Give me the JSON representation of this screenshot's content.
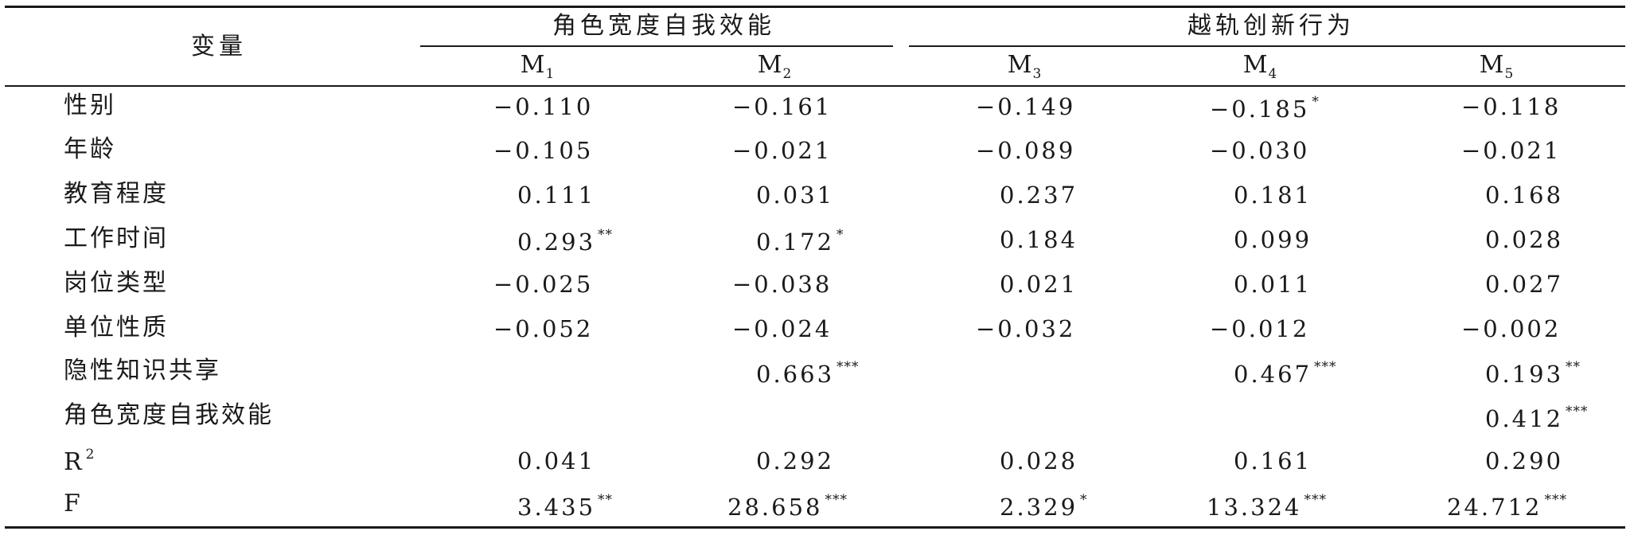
{
  "header": {
    "variable_label": "变量",
    "group_1": "角色宽度自我效能",
    "group_2": "越轨创新行为",
    "models": [
      {
        "base": "M",
        "sub": "1"
      },
      {
        "base": "M",
        "sub": "2"
      },
      {
        "base": "M",
        "sub": "3"
      },
      {
        "base": "M",
        "sub": "4"
      },
      {
        "base": "M",
        "sub": "5"
      }
    ]
  },
  "rows": [
    {
      "label": "性别",
      "label_sup": "",
      "cells": [
        {
          "value": "−0.110",
          "sig": ""
        },
        {
          "value": "−0.161",
          "sig": ""
        },
        {
          "value": "−0.149",
          "sig": ""
        },
        {
          "value": "−0.185",
          "sig": "*"
        },
        {
          "value": "−0.118",
          "sig": ""
        }
      ]
    },
    {
      "label": "年龄",
      "label_sup": "",
      "cells": [
        {
          "value": "−0.105",
          "sig": ""
        },
        {
          "value": "−0.021",
          "sig": ""
        },
        {
          "value": "−0.089",
          "sig": ""
        },
        {
          "value": "−0.030",
          "sig": ""
        },
        {
          "value": "−0.021",
          "sig": ""
        }
      ]
    },
    {
      "label": "教育程度",
      "label_sup": "",
      "cells": [
        {
          "value": "0.111",
          "sig": ""
        },
        {
          "value": "0.031",
          "sig": ""
        },
        {
          "value": "0.237",
          "sig": ""
        },
        {
          "value": "0.181",
          "sig": ""
        },
        {
          "value": "0.168",
          "sig": ""
        }
      ]
    },
    {
      "label": "工作时间",
      "label_sup": "",
      "cells": [
        {
          "value": "0.293",
          "sig": "**"
        },
        {
          "value": "0.172",
          "sig": "*"
        },
        {
          "value": "0.184",
          "sig": ""
        },
        {
          "value": "0.099",
          "sig": ""
        },
        {
          "value": "0.028",
          "sig": ""
        }
      ]
    },
    {
      "label": "岗位类型",
      "label_sup": "",
      "cells": [
        {
          "value": "−0.025",
          "sig": ""
        },
        {
          "value": "−0.038",
          "sig": ""
        },
        {
          "value": "0.021",
          "sig": ""
        },
        {
          "value": "0.011",
          "sig": ""
        },
        {
          "value": "0.027",
          "sig": ""
        }
      ]
    },
    {
      "label": "单位性质",
      "label_sup": "",
      "cells": [
        {
          "value": "−0.052",
          "sig": ""
        },
        {
          "value": "−0.024",
          "sig": ""
        },
        {
          "value": "−0.032",
          "sig": ""
        },
        {
          "value": "−0.012",
          "sig": ""
        },
        {
          "value": "−0.002",
          "sig": ""
        }
      ]
    },
    {
      "label": "隐性知识共享",
      "label_sup": "",
      "cells": [
        {
          "value": "",
          "sig": ""
        },
        {
          "value": "0.663",
          "sig": "***"
        },
        {
          "value": "",
          "sig": ""
        },
        {
          "value": "0.467",
          "sig": "***"
        },
        {
          "value": "0.193",
          "sig": "**"
        }
      ]
    },
    {
      "label": "角色宽度自我效能",
      "label_sup": "",
      "cells": [
        {
          "value": "",
          "sig": ""
        },
        {
          "value": "",
          "sig": ""
        },
        {
          "value": "",
          "sig": ""
        },
        {
          "value": "",
          "sig": ""
        },
        {
          "value": "0.412",
          "sig": "***"
        }
      ]
    },
    {
      "label": "R",
      "label_sup": "2",
      "cells": [
        {
          "value": "0.041",
          "sig": ""
        },
        {
          "value": "0.292",
          "sig": ""
        },
        {
          "value": "0.028",
          "sig": ""
        },
        {
          "value": "0.161",
          "sig": ""
        },
        {
          "value": "0.290",
          "sig": ""
        }
      ]
    },
    {
      "label": "F",
      "label_sup": "",
      "cells": [
        {
          "value": "3.435",
          "sig": "**"
        },
        {
          "value": "28.658",
          "sig": "***"
        },
        {
          "value": "2.329",
          "sig": "*"
        },
        {
          "value": "13.324",
          "sig": "***"
        },
        {
          "value": "24.712",
          "sig": "***"
        }
      ]
    }
  ]
}
